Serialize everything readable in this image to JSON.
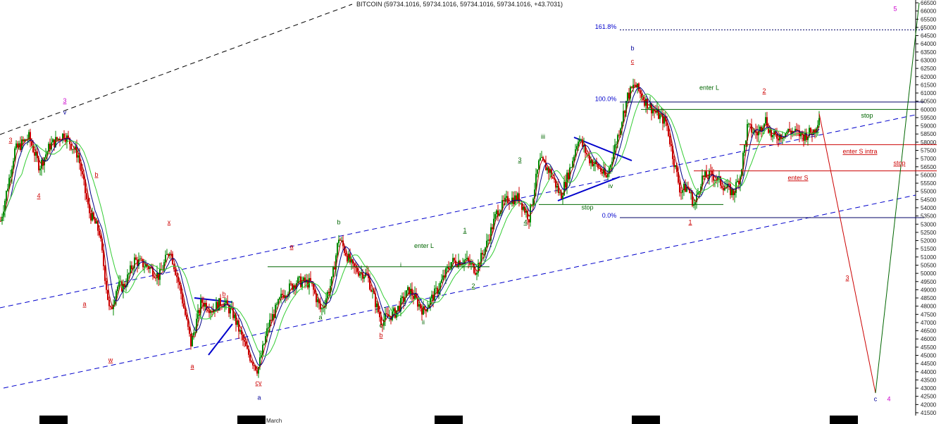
{
  "chart_data": {
    "type": "line",
    "title": "BITCOIN (59734.1016, 59734.1016, 59734.1016, 59734.1016, +43.7031)",
    "xlabel": "",
    "ylabel": "",
    "ylim": [
      41500,
      66500
    ],
    "y_ticks": [
      41500,
      42000,
      42500,
      43000,
      43500,
      44000,
      44500,
      45000,
      45500,
      46000,
      46500,
      47000,
      47500,
      48000,
      48500,
      49000,
      49500,
      50000,
      50500,
      51000,
      51500,
      52000,
      52500,
      53000,
      53500,
      54000,
      54500,
      55000,
      55500,
      56000,
      56500,
      57000,
      57500,
      58000,
      58500,
      59000,
      59500,
      60000,
      60500,
      61000,
      61500,
      62000,
      62500,
      63000,
      63500,
      64000,
      64500,
      65000,
      65500,
      66000,
      66500
    ],
    "x_axis_label": "March",
    "price_series_approx": [
      [
        0,
        53200
      ],
      [
        20,
        57500
      ],
      [
        40,
        58300
      ],
      [
        55,
        56500
      ],
      [
        70,
        57800
      ],
      [
        90,
        58500
      ],
      [
        110,
        57200
      ],
      [
        125,
        53800
      ],
      [
        140,
        52500
      ],
      [
        155,
        47500
      ],
      [
        165,
        49200
      ],
      [
        175,
        49200
      ],
      [
        190,
        50800
      ],
      [
        210,
        50400
      ],
      [
        225,
        49800
      ],
      [
        240,
        51500
      ],
      [
        255,
        49000
      ],
      [
        270,
        45700
      ],
      [
        285,
        48300
      ],
      [
        300,
        47800
      ],
      [
        315,
        48300
      ],
      [
        330,
        47500
      ],
      [
        350,
        45200
      ],
      [
        365,
        44100
      ],
      [
        380,
        46800
      ],
      [
        400,
        48700
      ],
      [
        420,
        49500
      ],
      [
        440,
        49400
      ],
      [
        455,
        47700
      ],
      [
        470,
        49500
      ],
      [
        480,
        52200
      ],
      [
        500,
        50300
      ],
      [
        520,
        49900
      ],
      [
        540,
        47100
      ],
      [
        560,
        47600
      ],
      [
        580,
        49000
      ],
      [
        600,
        47700
      ],
      [
        620,
        49000
      ],
      [
        640,
        50700
      ],
      [
        660,
        50800
      ],
      [
        675,
        50200
      ],
      [
        690,
        51800
      ],
      [
        705,
        53800
      ],
      [
        720,
        54500
      ],
      [
        735,
        54600
      ],
      [
        750,
        53400
      ],
      [
        765,
        56900
      ],
      [
        780,
        56200
      ],
      [
        795,
        54700
      ],
      [
        810,
        56600
      ],
      [
        820,
        58300
      ],
      [
        835,
        57000
      ],
      [
        850,
        56400
      ],
      [
        860,
        55800
      ],
      [
        875,
        58200
      ],
      [
        890,
        60800
      ],
      [
        900,
        61500
      ],
      [
        915,
        60500
      ],
      [
        930,
        59800
      ],
      [
        945,
        59200
      ],
      [
        955,
        57000
      ],
      [
        965,
        55000
      ],
      [
        975,
        55300
      ],
      [
        985,
        54100
      ],
      [
        995,
        55800
      ],
      [
        1010,
        56000
      ],
      [
        1025,
        55400
      ],
      [
        1040,
        54900
      ],
      [
        1050,
        56000
      ],
      [
        1060,
        58900
      ],
      [
        1075,
        58500
      ],
      [
        1085,
        59500
      ],
      [
        1095,
        58300
      ],
      [
        1105,
        58400
      ],
      [
        1120,
        58700
      ],
      [
        1140,
        58400
      ],
      [
        1155,
        58700
      ],
      [
        1163,
        59750
      ]
    ],
    "levels": [
      {
        "name": "161.8%",
        "value": 64850,
        "style": "dotted"
      },
      {
        "name": "100.0%",
        "value": 60450,
        "style": "solid"
      },
      {
        "name": "0.0%",
        "value": 53400,
        "style": "solid"
      }
    ],
    "horizontal_lines": [
      {
        "value": 60000,
        "x0": 910,
        "x1": 1300,
        "color": "#006600",
        "label": "stop"
      },
      {
        "value": 57850,
        "x0": 1050,
        "x1": 1330,
        "color": "#cc0000",
        "label": "enter S intra"
      },
      {
        "value": 56250,
        "x0": 985,
        "x1": 1330,
        "color": "#cc0000",
        "label": "stop"
      },
      {
        "value": 54200,
        "x0": 765,
        "x1": 1027,
        "color": "#006600",
        "label": "stop"
      },
      {
        "value": 50400,
        "x0": 380,
        "x1": 695,
        "color": "#006600",
        "label": "enter L"
      }
    ],
    "projection": [
      {
        "x": 1163,
        "y": 59750
      },
      {
        "x": 1243,
        "y": 42700
      },
      {
        "x": 1305,
        "y": 66500
      }
    ],
    "annotations": [
      {
        "text": "3",
        "x": 15,
        "y": 58000,
        "color": "#cc0000",
        "underline": true
      },
      {
        "text": "4",
        "x": 55,
        "y": 54600,
        "color": "#cc0000",
        "underline": true
      },
      {
        "text": "3",
        "x": 92,
        "y": 60400,
        "color": "#cc00cc",
        "underline": true
      },
      {
        "text": "v",
        "x": 92,
        "y": 59700,
        "color": "#000099",
        "underline": false
      },
      {
        "text": "b",
        "x": 137,
        "y": 55900,
        "color": "#cc0000",
        "underline": true
      },
      {
        "text": "a",
        "x": 120,
        "y": 48000,
        "color": "#cc0000",
        "underline": true
      },
      {
        "text": "w",
        "x": 157,
        "y": 44600,
        "color": "#cc0000",
        "underline": true
      },
      {
        "text": "x",
        "x": 240,
        "y": 53000,
        "color": "#cc0000",
        "underline": true
      },
      {
        "text": "b",
        "x": 318,
        "y": 48600,
        "color": "#cc0000",
        "underline": true
      },
      {
        "text": "a",
        "x": 273,
        "y": 44200,
        "color": "#cc0000",
        "underline": true
      },
      {
        "text": "cy",
        "x": 367,
        "y": 43200,
        "color": "#cc0000",
        "underline": true
      },
      {
        "text": "a",
        "x": 368,
        "y": 42300,
        "color": "#000099",
        "underline": false
      },
      {
        "text": "a",
        "x": 414,
        "y": 51500,
        "color": "#cc0000",
        "underline": true
      },
      {
        "text": "b",
        "x": 481,
        "y": 53000,
        "color": "#006600",
        "underline": false
      },
      {
        "text": "a",
        "x": 455,
        "y": 47200,
        "color": "#006600",
        "underline": false
      },
      {
        "text": "enter L",
        "x": 602,
        "y": 51550,
        "color": "#006600",
        "underline": false
      },
      {
        "text": "i",
        "x": 569,
        "y": 50400,
        "color": "#006600",
        "underline": false
      },
      {
        "text": "c",
        "x": 541,
        "y": 46700,
        "color": "#006600",
        "underline": false
      },
      {
        "text": "b",
        "x": 541,
        "y": 46100,
        "color": "#cc0000",
        "underline": true
      },
      {
        "text": "ii",
        "x": 601,
        "y": 46900,
        "color": "#006600",
        "underline": false
      },
      {
        "text": "1",
        "x": 660,
        "y": 52500,
        "color": "#006600",
        "underline": true
      },
      {
        "text": "2",
        "x": 672,
        "y": 49100,
        "color": "#006600",
        "underline": true
      },
      {
        "text": "3",
        "x": 738,
        "y": 56800,
        "color": "#006600",
        "underline": true
      },
      {
        "text": "4",
        "x": 746,
        "y": 53000,
        "color": "#006600",
        "underline": true
      },
      {
        "text": "iii",
        "x": 771,
        "y": 58200,
        "color": "#006600",
        "underline": false
      },
      {
        "text": "iv",
        "x": 867,
        "y": 55200,
        "color": "#006600",
        "underline": false
      },
      {
        "text": "stop",
        "x": 834,
        "y": 53900,
        "color": "#006600",
        "underline": false
      },
      {
        "text": "b",
        "x": 898,
        "y": 63600,
        "color": "#000099",
        "underline": false
      },
      {
        "text": "c",
        "x": 898,
        "y": 62800,
        "color": "#cc0000",
        "underline": true
      },
      {
        "text": "161.8%",
        "x": 860,
        "y": 64900,
        "color": "#0000cc",
        "underline": false
      },
      {
        "text": "100.0%",
        "x": 860,
        "y": 60500,
        "color": "#0000cc",
        "underline": false
      },
      {
        "text": "0.0%",
        "x": 865,
        "y": 53400,
        "color": "#0000cc",
        "underline": false
      },
      {
        "text": "enter L",
        "x": 1007,
        "y": 61200,
        "color": "#006600",
        "underline": false
      },
      {
        "text": "2",
        "x": 1085,
        "y": 61000,
        "color": "#cc0000",
        "underline": true
      },
      {
        "text": "1",
        "x": 980,
        "y": 53000,
        "color": "#cc0000",
        "underline": true
      },
      {
        "text": "stop",
        "x": 1231,
        "y": 59500,
        "color": "#006600",
        "underline": false
      },
      {
        "text": "enter S intra",
        "x": 1221,
        "y": 57300,
        "color": "#cc0000",
        "underline": true
      },
      {
        "text": "stop",
        "x": 1277,
        "y": 56600,
        "color": "#cc0000",
        "underline": true
      },
      {
        "text": "enter S",
        "x": 1133,
        "y": 55700,
        "color": "#cc0000",
        "underline": true
      },
      {
        "text": "3",
        "x": 1203,
        "y": 49600,
        "color": "#cc0000",
        "underline": true
      },
      {
        "text": "5",
        "x": 1271,
        "y": 66000,
        "color": "#cc00cc",
        "underline": false
      },
      {
        "text": "c",
        "x": 1243,
        "y": 42200,
        "color": "#000099",
        "underline": false
      },
      {
        "text": "4",
        "x": 1262,
        "y": 42200,
        "color": "#cc00cc",
        "underline": false
      }
    ],
    "grid": false,
    "legend": "none",
    "colors": {
      "bull_candle": "#008800",
      "bear_candle": "#cc0000",
      "ma_fast": "#aa0000",
      "ma_mid": "#000088",
      "ma_slow": "#33cc33",
      "channel": "#0000cc",
      "long_channel": "#000000",
      "projection_down": "#cc0000",
      "projection_up": "#006600"
    }
  }
}
